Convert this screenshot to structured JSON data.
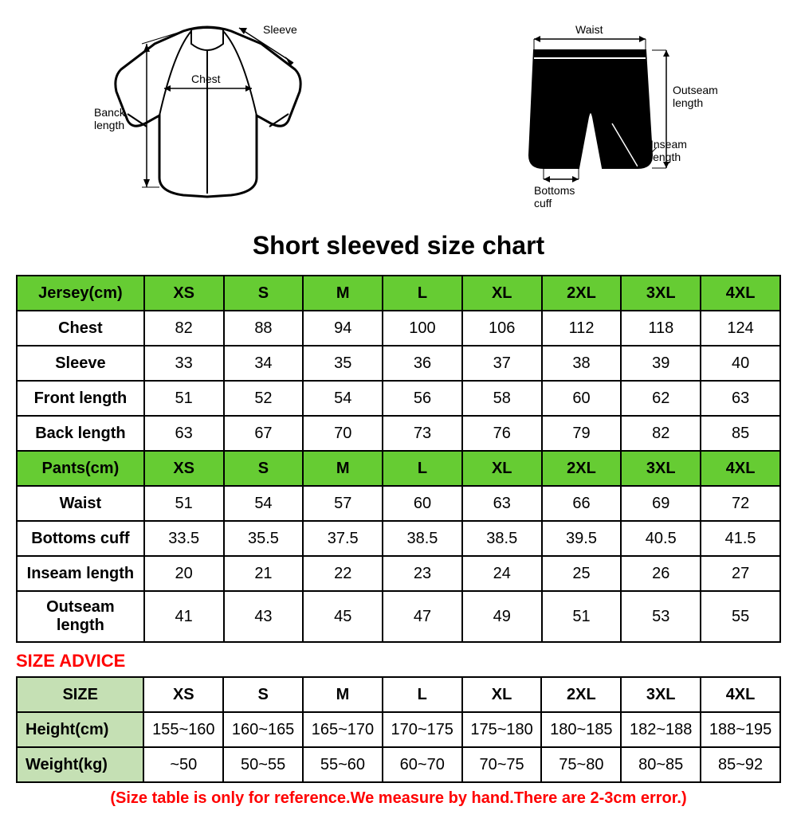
{
  "title": "Short sleeved size chart",
  "diagram_labels": {
    "jersey": {
      "sleeve": "Sleeve",
      "chest": "Chest",
      "back_length": "Banck\nlength"
    },
    "shorts": {
      "waist": "Waist",
      "outseam": "Outseam\nlength",
      "inseam": "Inseam\nlength",
      "bottoms_cuff": "Bottoms\ncuff"
    }
  },
  "size_table": {
    "header_jersey": "Jersey(cm)",
    "header_pants": "Pants(cm)",
    "sizes": [
      "XS",
      "S",
      "M",
      "L",
      "XL",
      "2XL",
      "3XL",
      "4XL"
    ],
    "jersey_rows": [
      {
        "label": "Chest",
        "vals": [
          "82",
          "88",
          "94",
          "100",
          "106",
          "112",
          "118",
          "124"
        ]
      },
      {
        "label": "Sleeve",
        "vals": [
          "33",
          "34",
          "35",
          "36",
          "37",
          "38",
          "39",
          "40"
        ]
      },
      {
        "label": "Front length",
        "vals": [
          "51",
          "52",
          "54",
          "56",
          "58",
          "60",
          "62",
          "63"
        ]
      },
      {
        "label": "Back length",
        "vals": [
          "63",
          "67",
          "70",
          "73",
          "76",
          "79",
          "82",
          "85"
        ]
      }
    ],
    "pants_rows": [
      {
        "label": "Waist",
        "vals": [
          "51",
          "54",
          "57",
          "60",
          "63",
          "66",
          "69",
          "72"
        ]
      },
      {
        "label": "Bottoms cuff",
        "vals": [
          "33.5",
          "35.5",
          "37.5",
          "38.5",
          "38.5",
          "39.5",
          "40.5",
          "41.5"
        ]
      },
      {
        "label": "Inseam length",
        "vals": [
          "20",
          "21",
          "22",
          "23",
          "24",
          "25",
          "26",
          "27"
        ]
      },
      {
        "label": "Outseam length",
        "vals": [
          "41",
          "43",
          "45",
          "47",
          "49",
          "51",
          "53",
          "55"
        ]
      }
    ]
  },
  "advice": {
    "heading": "SIZE ADVICE",
    "header": "SIZE",
    "sizes": [
      "XS",
      "S",
      "M",
      "L",
      "XL",
      "2XL",
      "3XL",
      "4XL"
    ],
    "rows": [
      {
        "label": "Height(cm)",
        "vals": [
          "155~160",
          "160~165",
          "165~170",
          "170~175",
          "175~180",
          "180~185",
          "182~188",
          "188~195"
        ]
      },
      {
        "label": "Weight(kg)",
        "vals": [
          "~50",
          "50~55",
          "55~60",
          "60~70",
          "70~75",
          "75~80",
          "80~85",
          "85~92"
        ]
      }
    ],
    "footnote": "(Size table is only for reference.We measure by hand.There are 2-3cm error.)"
  },
  "colors": {
    "header_green": "#66cc33",
    "advice_green": "#c5e0b4",
    "red": "#ff0000",
    "border": "#000000",
    "background": "#ffffff"
  },
  "typography": {
    "title_fontsize": 32,
    "cell_fontsize": 20,
    "advice_fontsize": 22,
    "footnote_fontsize": 20
  }
}
